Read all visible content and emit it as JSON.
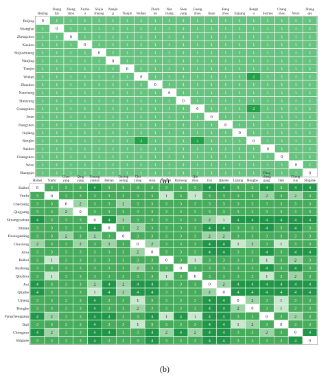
{
  "chart_data": [
    {
      "type": "heatmap",
      "panel_label": "(a)",
      "columns": [
        [
          "Beijing"
        ],
        [
          "Shang",
          "hai"
        ],
        [
          "Zheng",
          "zhou"
        ],
        [
          "Xuzho",
          "u"
        ],
        [
          "Shijia",
          "zhuang"
        ],
        [
          "Nanjin",
          "g"
        ],
        [
          "Tianjin"
        ],
        [
          "Wuhan"
        ],
        [
          "Zhazh",
          "ou"
        ],
        [
          "Nan",
          "chang"
        ],
        [
          "Shen",
          "yang"
        ],
        [
          "Guang",
          "zhou"
        ],
        [
          "Jinan"
        ],
        [
          "Hang",
          "zhou"
        ],
        [
          "Jiujiang"
        ],
        [
          "Bengb",
          "u"
        ],
        [
          "Suzhou"
        ],
        [
          "Chang",
          "zhou"
        ],
        [
          "Wuxi"
        ],
        [
          "Shang",
          "qiu"
        ]
      ],
      "rows": [
        "Beijing",
        "Shanghai",
        "Zhengzhou",
        "Xuzhou",
        "Shijiazhuang",
        "Nanjing",
        "Tianjin",
        "Wuhan",
        "Zhuzhou",
        "Nanchang",
        "Shenyang",
        "Guangzhou",
        "Jinan",
        "Hangzhou",
        "Jiujiang",
        "Bengbu",
        "Suzhou",
        "Changzhou",
        "Wuxi",
        "Shangqiu"
      ],
      "values": [
        [
          0,
          1,
          1,
          1,
          1,
          1,
          1,
          1,
          1,
          1,
          1,
          1,
          1,
          1,
          1,
          1,
          1,
          1,
          1,
          1
        ],
        [
          1,
          0,
          1,
          1,
          1,
          1,
          1,
          1,
          1,
          1,
          1,
          1,
          1,
          1,
          1,
          1,
          1,
          1,
          1,
          1
        ],
        [
          1,
          1,
          0,
          1,
          1,
          1,
          1,
          1,
          1,
          1,
          1,
          1,
          1,
          1,
          1,
          1,
          1,
          1,
          1,
          1
        ],
        [
          1,
          1,
          1,
          0,
          1,
          1,
          1,
          1,
          1,
          1,
          1,
          1,
          1,
          1,
          1,
          1,
          1,
          1,
          1,
          1
        ],
        [
          1,
          1,
          1,
          1,
          0,
          1,
          1,
          1,
          1,
          1,
          1,
          1,
          1,
          1,
          1,
          1,
          1,
          1,
          1,
          1
        ],
        [
          1,
          1,
          1,
          1,
          1,
          0,
          1,
          1,
          1,
          1,
          1,
          1,
          1,
          1,
          1,
          1,
          1,
          1,
          1,
          1
        ],
        [
          1,
          1,
          1,
          1,
          1,
          1,
          0,
          1,
          1,
          1,
          1,
          1,
          1,
          1,
          1,
          1,
          1,
          1,
          1,
          1
        ],
        [
          1,
          1,
          1,
          1,
          1,
          1,
          1,
          0,
          1,
          1,
          1,
          1,
          1,
          1,
          1,
          2,
          1,
          1,
          1,
          1
        ],
        [
          1,
          1,
          1,
          1,
          1,
          1,
          1,
          1,
          0,
          1,
          1,
          1,
          1,
          1,
          1,
          1,
          1,
          1,
          1,
          1
        ],
        [
          1,
          1,
          1,
          1,
          1,
          1,
          1,
          1,
          1,
          0,
          1,
          1,
          1,
          1,
          1,
          1,
          1,
          1,
          1,
          1
        ],
        [
          1,
          1,
          1,
          1,
          1,
          1,
          1,
          1,
          1,
          1,
          0,
          1,
          1,
          1,
          1,
          1,
          1,
          1,
          1,
          1
        ],
        [
          1,
          1,
          1,
          1,
          1,
          1,
          1,
          1,
          1,
          1,
          1,
          0,
          1,
          1,
          1,
          2,
          1,
          1,
          1,
          1
        ],
        [
          1,
          1,
          1,
          1,
          1,
          1,
          1,
          1,
          1,
          1,
          1,
          1,
          0,
          1,
          1,
          1,
          1,
          1,
          1,
          1
        ],
        [
          1,
          1,
          1,
          1,
          1,
          1,
          1,
          1,
          1,
          1,
          1,
          1,
          1,
          0,
          1,
          1,
          1,
          1,
          1,
          1
        ],
        [
          1,
          1,
          1,
          1,
          1,
          1,
          1,
          1,
          1,
          1,
          1,
          1,
          1,
          1,
          0,
          1,
          1,
          1,
          1,
          1
        ],
        [
          1,
          1,
          1,
          1,
          1,
          1,
          1,
          2,
          1,
          1,
          1,
          2,
          1,
          1,
          1,
          0,
          1,
          1,
          1,
          1
        ],
        [
          1,
          1,
          1,
          1,
          1,
          1,
          1,
          1,
          1,
          1,
          1,
          1,
          1,
          1,
          1,
          1,
          0,
          1,
          1,
          1
        ],
        [
          1,
          1,
          1,
          1,
          1,
          1,
          1,
          1,
          1,
          1,
          1,
          1,
          1,
          1,
          1,
          1,
          1,
          0,
          1,
          1
        ],
        [
          1,
          1,
          1,
          1,
          1,
          1,
          1,
          1,
          1,
          1,
          1,
          1,
          1,
          1,
          1,
          1,
          1,
          1,
          0,
          1
        ],
        [
          1,
          1,
          1,
          1,
          1,
          1,
          1,
          1,
          1,
          1,
          1,
          1,
          1,
          1,
          1,
          1,
          1,
          1,
          1,
          0
        ]
      ]
    },
    {
      "type": "heatmap",
      "panel_label": "(b)",
      "columns": [
        [
          "Haibei"
        ],
        [
          "Yunfu"
        ],
        [
          "Chao",
          "yang"
        ],
        [
          "Qing",
          "yang"
        ],
        [
          "Shuang",
          "yashan"
        ],
        [
          "Heitan"
        ],
        [
          "Daxing",
          "anling"
        ],
        [
          "Chu",
          "xiong"
        ],
        [
          "Alxa"
        ],
        [
          "Beihai"
        ],
        [
          "Bazhong"
        ],
        [
          "Qin",
          "zhou"
        ],
        [
          "Jixi"
        ],
        [
          "Qitaihe"
        ],
        [
          "Lijiang"
        ],
        [
          "Honghe"
        ],
        [
          "Fang",
          "cheng",
          "gang"
        ],
        [
          "Dali"
        ],
        [
          "Chong",
          "zuo"
        ],
        [
          "Shigatse"
        ]
      ],
      "rows": [
        "Haibei",
        "Yunfu",
        "Chaoyang",
        "Qingyang",
        "Shuangyashan",
        "Hetian",
        "Daxinganling",
        "Chuxiong",
        "Alxa",
        "Beihai",
        "Bazhong",
        "Qinzhou",
        "Jixi",
        "Qitaihe",
        "Lijiang",
        "Honghe",
        "Fangchenggang",
        "Dali",
        "Chongzuo",
        "Shigatse"
      ],
      "values": [
        [
          0,
          3,
          3,
          3,
          4,
          3,
          3,
          3,
          3,
          3,
          3,
          3,
          4,
          4,
          3,
          3,
          4,
          3,
          4,
          4
        ],
        [
          3,
          0,
          3,
          3,
          3,
          3,
          3,
          3,
          3,
          1,
          3,
          1,
          3,
          3,
          3,
          3,
          2,
          3,
          2,
          3
        ],
        [
          3,
          3,
          0,
          2,
          3,
          3,
          2,
          3,
          3,
          3,
          3,
          3,
          3,
          3,
          3,
          3,
          3,
          3,
          3,
          3
        ],
        [
          3,
          3,
          2,
          0,
          3,
          3,
          3,
          3,
          3,
          3,
          3,
          3,
          3,
          3,
          3,
          3,
          3,
          3,
          3,
          3
        ],
        [
          4,
          3,
          3,
          3,
          0,
          4,
          2,
          3,
          3,
          3,
          3,
          3,
          2,
          1,
          4,
          4,
          4,
          4,
          4,
          4
        ],
        [
          3,
          3,
          3,
          3,
          4,
          0,
          3,
          2,
          3,
          3,
          3,
          3,
          4,
          4,
          3,
          3,
          4,
          3,
          4,
          3
        ],
        [
          3,
          3,
          2,
          3,
          2,
          3,
          0,
          3,
          3,
          3,
          3,
          3,
          2,
          2,
          3,
          3,
          3,
          3,
          3,
          3
        ],
        [
          2,
          3,
          3,
          2,
          3,
          2,
          3,
          0,
          2,
          3,
          3,
          3,
          4,
          4,
          1,
          2,
          3,
          1,
          3,
          3
        ],
        [
          3,
          3,
          3,
          3,
          3,
          3,
          3,
          2,
          0,
          3,
          3,
          3,
          4,
          4,
          3,
          3,
          4,
          3,
          4,
          4
        ],
        [
          3,
          1,
          3,
          3,
          3,
          3,
          3,
          3,
          3,
          0,
          3,
          1,
          3,
          3,
          3,
          3,
          1,
          3,
          2,
          3
        ],
        [
          3,
          3,
          3,
          3,
          3,
          3,
          3,
          2,
          3,
          3,
          0,
          3,
          3,
          3,
          3,
          3,
          4,
          3,
          4,
          3
        ],
        [
          3,
          1,
          3,
          3,
          3,
          3,
          3,
          3,
          3,
          1,
          3,
          0,
          3,
          3,
          3,
          3,
          1,
          3,
          2,
          3
        ],
        [
          4,
          3,
          3,
          3,
          2,
          4,
          2,
          4,
          4,
          3,
          3,
          3,
          0,
          2,
          4,
          4,
          4,
          4,
          4,
          4
        ],
        [
          4,
          3,
          3,
          3,
          1,
          4,
          2,
          4,
          4,
          3,
          3,
          3,
          2,
          0,
          4,
          4,
          4,
          4,
          4,
          4
        ],
        [
          3,
          3,
          3,
          3,
          4,
          3,
          3,
          1,
          3,
          3,
          3,
          3,
          4,
          4,
          0,
          2,
          3,
          1,
          3,
          3
        ],
        [
          3,
          3,
          3,
          3,
          4,
          3,
          3,
          2,
          3,
          3,
          3,
          3,
          4,
          4,
          2,
          0,
          3,
          1,
          3,
          3
        ],
        [
          4,
          2,
          3,
          3,
          4,
          4,
          3,
          3,
          4,
          1,
          4,
          1,
          4,
          4,
          3,
          3,
          0,
          3,
          2,
          3
        ],
        [
          3,
          3,
          3,
          3,
          4,
          3,
          3,
          1,
          3,
          3,
          3,
          3,
          4,
          4,
          1,
          2,
          3,
          0,
          3,
          3
        ],
        [
          4,
          2,
          3,
          3,
          4,
          4,
          3,
          3,
          4,
          2,
          4,
          2,
          4,
          4,
          3,
          3,
          2,
          3,
          0,
          4
        ],
        [
          3,
          3,
          3,
          3,
          4,
          3,
          3,
          3,
          4,
          3,
          3,
          3,
          4,
          4,
          3,
          3,
          3,
          3,
          4,
          0
        ]
      ]
    }
  ],
  "colors": {
    "zero": "#ffffff",
    "level1_a": "#68c280",
    "level2_a": "#23a148",
    "level1_b": "#c7e8cd",
    "level2_b": "#9cd4a6",
    "level3_b": "#47ad5d",
    "level4_b": "#219648",
    "text_light": "#ffffff",
    "text_dark": "#111111",
    "border": "#ffffff",
    "frame": "#555555"
  }
}
